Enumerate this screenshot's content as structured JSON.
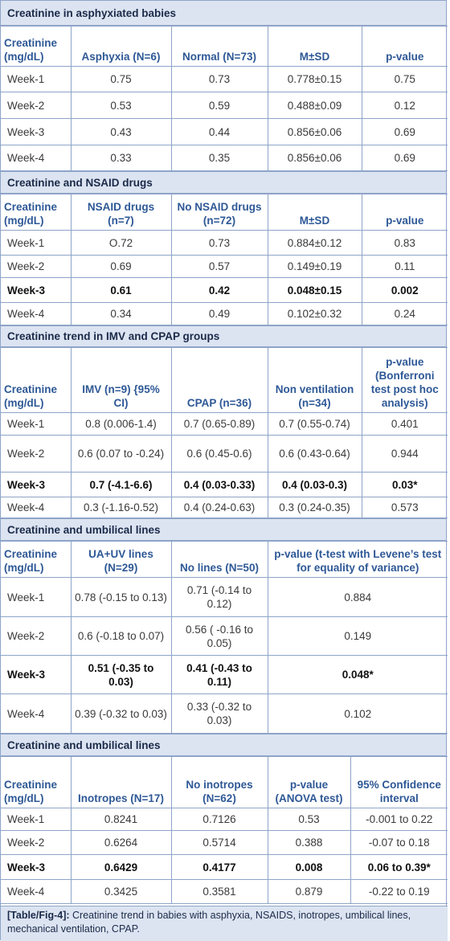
{
  "sections": [
    {
      "title": "Creatinine in asphyxiated babies",
      "headers": [
        "Creatinine (mg/dL)",
        "Asphyxia (N=6)",
        "Normal (N=73)",
        "M±SD",
        "p-value"
      ],
      "rows": [
        [
          "Week-1",
          "0.75",
          "0.73",
          "0.778±0.15",
          "0.75"
        ],
        [
          "Week-2",
          "0.53",
          "0.59",
          "0.488±0.09",
          "0.12"
        ],
        [
          "Week-3",
          "0.43",
          "0.44",
          "0.856±0.06",
          "0.69"
        ],
        [
          "Week-4",
          "0.33",
          "0.35",
          "0.856±0.06",
          "0.69"
        ]
      ]
    },
    {
      "title": "Creatinine and NSAID drugs",
      "headers": [
        "Creatinine (mg/dL)",
        "NSAID drugs (n=7)",
        "No NSAID drugs (n=72)",
        "M±SD",
        "p-value"
      ],
      "rows": [
        [
          "Week-1",
          "O.72",
          "0.73",
          "0.884±0.12",
          "0.83"
        ],
        [
          "Week-2",
          "0.69",
          "0.57",
          "0.149±0.19",
          "0.11"
        ],
        [
          "Week-3",
          "0.61",
          "0.42",
          "0.048±0.15",
          "0.002"
        ],
        [
          "Week-4",
          "0.34",
          "0.49",
          "0.102±0.32",
          "0.24"
        ]
      ]
    },
    {
      "title": "Creatinine trend in IMV and CPAP groups",
      "headers": [
        "Creatinine (mg/dL)",
        "IMV (n=9) {95% CI)",
        "CPAP (n=36)",
        "Non ventilation (n=34)",
        "p-value (Bonferroni test post hoc analysis)"
      ],
      "rows": [
        [
          "Week-1",
          "0.8 (0.006-1.4)",
          "0.7 (0.65-0.89)",
          "0.7 (0.55-0.74)",
          "0.401"
        ],
        [
          "Week-2",
          "0.6 (0.07 to -0.24)",
          "0.6 (0.45-0.6)",
          "0.6 (0.43-0.64)",
          "0.944"
        ],
        [
          "Week-3",
          "0.7 (-4.1-6.6)",
          "0.4 (0.03-0.33)",
          "0.4 (0.03-0.3)",
          "0.03*"
        ],
        [
          "Week-4",
          "0.3 (-1.16-0.52)",
          "0.4 (0.24-0.63)",
          "0.3 (0.24-0.35)",
          "0.573"
        ]
      ]
    },
    {
      "title": "Creatinine and umbilical lines",
      "headers": [
        "Creatinine (mg/dL)",
        "UA+UV lines (N=29)",
        "No lines (N=50)",
        "p-value (t-test with Levene’s test for equality of variance)"
      ],
      "rows": [
        [
          "Week-1",
          "0.78 (-0.15 to 0.13)",
          "0.71 (-0.14 to 0.12)",
          "0.884"
        ],
        [
          "Week-2",
          "0.6 (-0.18 to 0.07)",
          "0.56 ( -0.16 to 0.05)",
          "0.149"
        ],
        [
          "Week-3",
          "0.51 (-0.35 to 0.03)",
          "0.41 (-0.43 to 0.11)",
          "0.048*"
        ],
        [
          "Week-4",
          "0.39 (-0.32 to 0.03)",
          "0.33 (-0.32 to 0.03)",
          "0.102"
        ]
      ]
    },
    {
      "title": "Creatinine and umbilical lines",
      "headers": [
        "Creatinine (mg/dL)",
        "Inotropes (N=17)",
        "No inotropes (N=62)",
        "p-value (ANOVA test)",
        "95% Confidence interval"
      ],
      "rows": [
        [
          "Week-1",
          "0.8241",
          "0.7126",
          "0.53",
          "-0.001 to 0.22"
        ],
        [
          "Week-2",
          "0.6264",
          "0.5714",
          "0.388",
          "-0.07 to 0.18"
        ],
        [
          "Week-3",
          "0.6429",
          "0.4177",
          "0.008",
          "0.06 to 0.39*"
        ],
        [
          "Week-4",
          "0.3425",
          "0.3581",
          "0.879",
          "-0.22 to 0.19"
        ]
      ]
    }
  ],
  "caption": {
    "label": "[Table/Fig-4]:",
    "text": "Creatinine trend in babies with asphyxia, NSAIDS, inotropes, umbilical lines, mechanical ventilation, CPAP."
  }
}
